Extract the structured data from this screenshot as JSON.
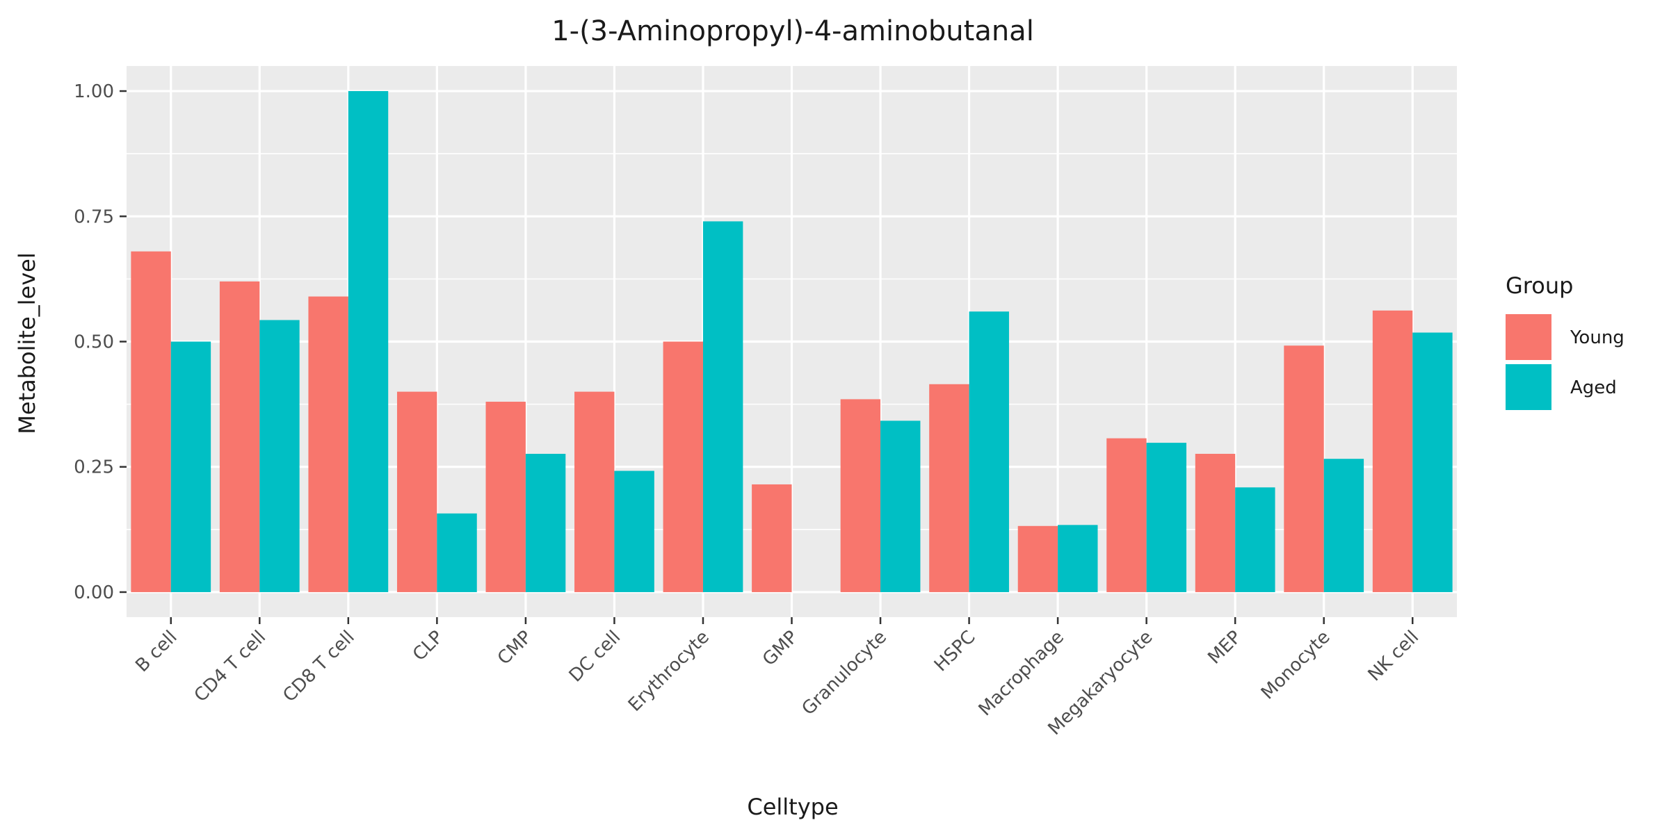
{
  "chart_data": {
    "type": "bar",
    "title": "1-(3-Aminopropyl)-4-aminobutanal",
    "xlabel": "Celltype",
    "ylabel": "Metabolite_level",
    "categories": [
      "B cell",
      "CD4 T cell",
      "CD8 T cell",
      "CLP",
      "CMP",
      "DC cell",
      "Erythrocyte",
      "GMP",
      "Granulocyte",
      "HSPC",
      "Macrophage",
      "Megakaryocyte",
      "MEP",
      "Monocyte",
      "NK cell"
    ],
    "series": [
      {
        "name": "Young",
        "color": "#F8766D",
        "values": [
          0.68,
          0.62,
          0.59,
          0.4,
          0.38,
          0.4,
          0.5,
          0.215,
          0.385,
          0.415,
          0.132,
          0.307,
          0.276,
          0.492,
          0.562
        ]
      },
      {
        "name": "Aged",
        "color": "#00BFC4",
        "values": [
          0.5,
          0.543,
          1.0,
          0.157,
          0.276,
          0.242,
          0.74,
          null,
          0.342,
          0.56,
          0.134,
          0.298,
          0.209,
          0.266,
          0.518
        ]
      }
    ],
    "ylim": [
      -0.05,
      1.05
    ],
    "yticks": [
      0.0,
      0.25,
      0.5,
      0.75,
      1.0
    ],
    "ytick_labels": [
      "0.00",
      "0.25",
      "0.50",
      "0.75",
      "1.00"
    ],
    "grid": true,
    "legend": {
      "title": "Group",
      "position": "right"
    },
    "panel_background": "#EBEBEB",
    "grid_color": "#FFFFFF"
  }
}
